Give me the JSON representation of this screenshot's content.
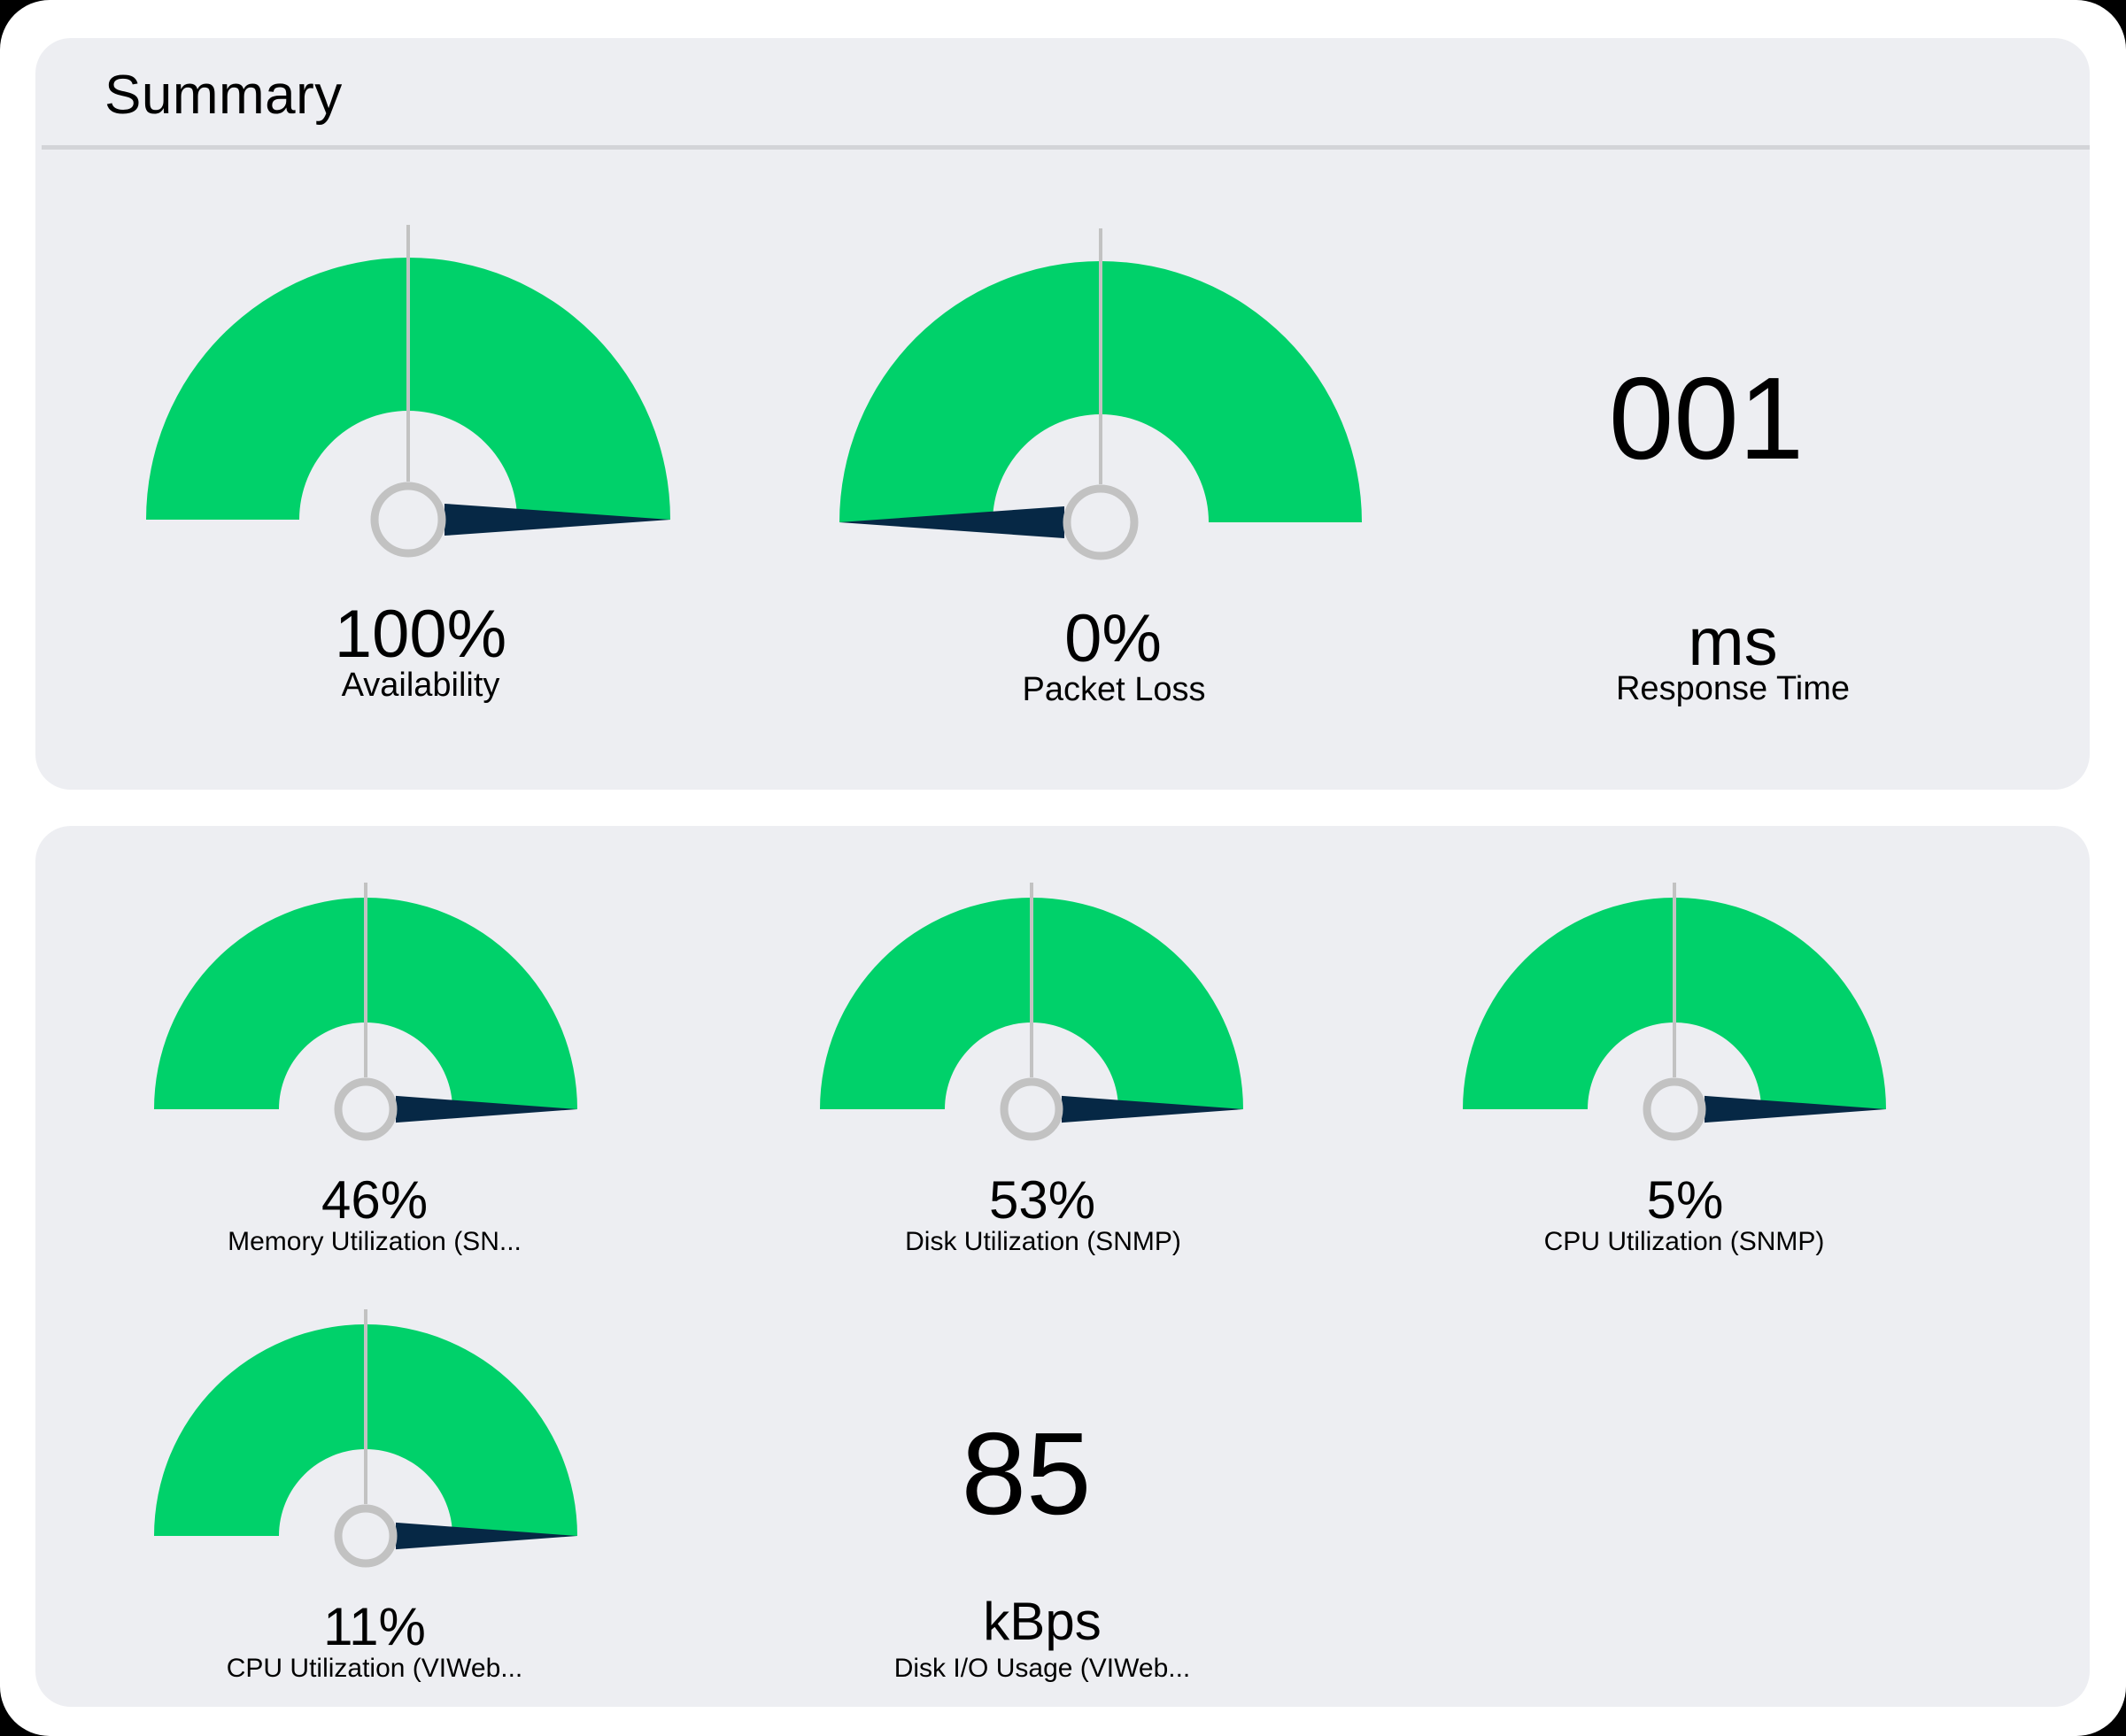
{
  "colors": {
    "frame": "#ffffff",
    "panel": "#edeef2",
    "gauge_fill": "#00d16a",
    "needle": "#062845",
    "tick": "#c2c2c2",
    "hub": "#c2c2c2",
    "text": "#000000"
  },
  "summary": {
    "title": "Summary",
    "widgets": [
      {
        "type": "gauge",
        "value": "100%",
        "label": "Availability",
        "percent": 100
      },
      {
        "type": "gauge",
        "value": "0%",
        "label": "Packet Loss",
        "percent": 0
      },
      {
        "type": "number",
        "value": "001",
        "unit": "ms",
        "label": "Response Time"
      }
    ]
  },
  "metrics": {
    "widgets": [
      {
        "type": "gauge",
        "value": "46%",
        "label": "Memory Utilization (SN...",
        "percent": 46
      },
      {
        "type": "gauge",
        "value": "53%",
        "label": "Disk Utilization (SNMP)",
        "percent": 53
      },
      {
        "type": "gauge",
        "value": "5%",
        "label": "CPU Utilization (SNMP)",
        "percent": 5
      },
      {
        "type": "gauge",
        "value": "11%",
        "label": "CPU Utilization (VIWeb...",
        "percent": 11
      },
      {
        "type": "number",
        "value": "85",
        "unit": "kBps",
        "label": "Disk I/O Usage (VIWeb..."
      }
    ]
  },
  "chart_data": {
    "type": "gauge",
    "title": "Summary",
    "series": [
      {
        "name": "Availability",
        "value": 100,
        "unit": "%",
        "range": [
          0,
          100
        ]
      },
      {
        "name": "Packet Loss",
        "value": 0,
        "unit": "%",
        "range": [
          0,
          100
        ]
      },
      {
        "name": "Response Time",
        "value": 1,
        "display": "001",
        "unit": "ms"
      },
      {
        "name": "Memory Utilization (SN...",
        "value": 46,
        "unit": "%",
        "range": [
          0,
          100
        ]
      },
      {
        "name": "Disk Utilization (SNMP)",
        "value": 53,
        "unit": "%",
        "range": [
          0,
          100
        ]
      },
      {
        "name": "CPU Utilization (SNMP)",
        "value": 5,
        "unit": "%",
        "range": [
          0,
          100
        ]
      },
      {
        "name": "CPU Utilization (VIWeb...",
        "value": 11,
        "unit": "%",
        "range": [
          0,
          100
        ]
      },
      {
        "name": "Disk I/O Usage (VIWeb...",
        "value": 85,
        "unit": "kBps"
      }
    ]
  }
}
